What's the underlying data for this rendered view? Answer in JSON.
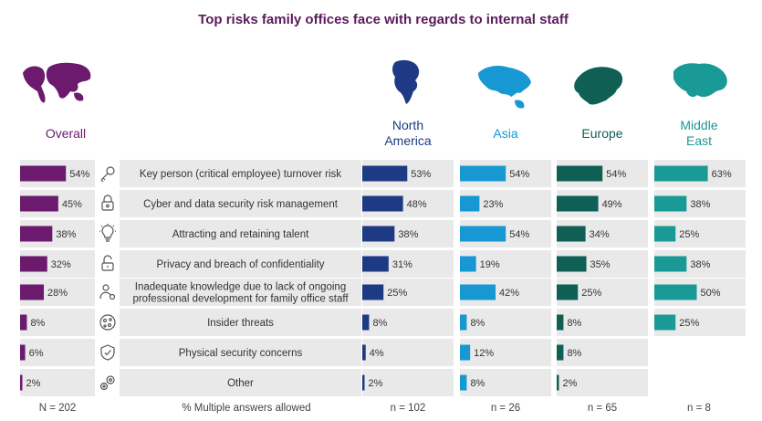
{
  "chart_data": {
    "type": "bar",
    "title": "Top risks family offices face with regards to internal staff",
    "categories": [
      {
        "label": "Key person (critical employee) turnover risk",
        "icon": "key-icon"
      },
      {
        "label": "Cyber and data security risk management",
        "icon": "padlock-icon"
      },
      {
        "label": "Attracting and retaining talent",
        "icon": "lightbulb-icon"
      },
      {
        "label": "Privacy and breach of confidentiality",
        "icon": "open-lock-icon"
      },
      {
        "label": "Inadequate knowledge due to lack of ongoing professional development for family office staff",
        "lines": [
          "Inadequate knowledge due to lack of ongoing",
          "professional development for family office staff"
        ],
        "icon": "person-gear-icon"
      },
      {
        "label": "Insider threats",
        "icon": "cookie-icon"
      },
      {
        "label": "Physical security concerns",
        "icon": "shield-check-icon"
      },
      {
        "label": "Other",
        "icon": "gears-icon"
      }
    ],
    "series": [
      {
        "name": "Overall",
        "color": "#6b1a6e",
        "values": [
          54,
          45,
          38,
          32,
          28,
          8,
          6,
          2
        ],
        "n": "N = 202",
        "map_icon": "world-map-icon"
      },
      {
        "name": "North America",
        "lines": [
          "North",
          "America"
        ],
        "color": "#1f3a84",
        "values": [
          53,
          48,
          38,
          31,
          25,
          8,
          4,
          2
        ],
        "n": "n = 102",
        "map_icon": "north-america-map-icon"
      },
      {
        "name": "Asia",
        "color": "#1798d3",
        "values": [
          54,
          23,
          54,
          19,
          42,
          8,
          12,
          8
        ],
        "n": "n = 26",
        "map_icon": "asia-map-icon"
      },
      {
        "name": "Europe",
        "color": "#0f5f55",
        "values": [
          54,
          49,
          34,
          35,
          25,
          8,
          8,
          2
        ],
        "n": "n = 65",
        "map_icon": "europe-map-icon"
      },
      {
        "name": "Middle East",
        "lines": [
          "Middle",
          "East"
        ],
        "color": "#1a9a97",
        "values": [
          63,
          38,
          25,
          38,
          50,
          25,
          null,
          null
        ],
        "n": "n = 8",
        "map_icon": "middle-east-map-icon"
      }
    ],
    "value_suffix": "%",
    "footnote": "% Multiple answers allowed",
    "xlim": [
      0,
      100
    ],
    "grid": false,
    "legend": "none"
  }
}
